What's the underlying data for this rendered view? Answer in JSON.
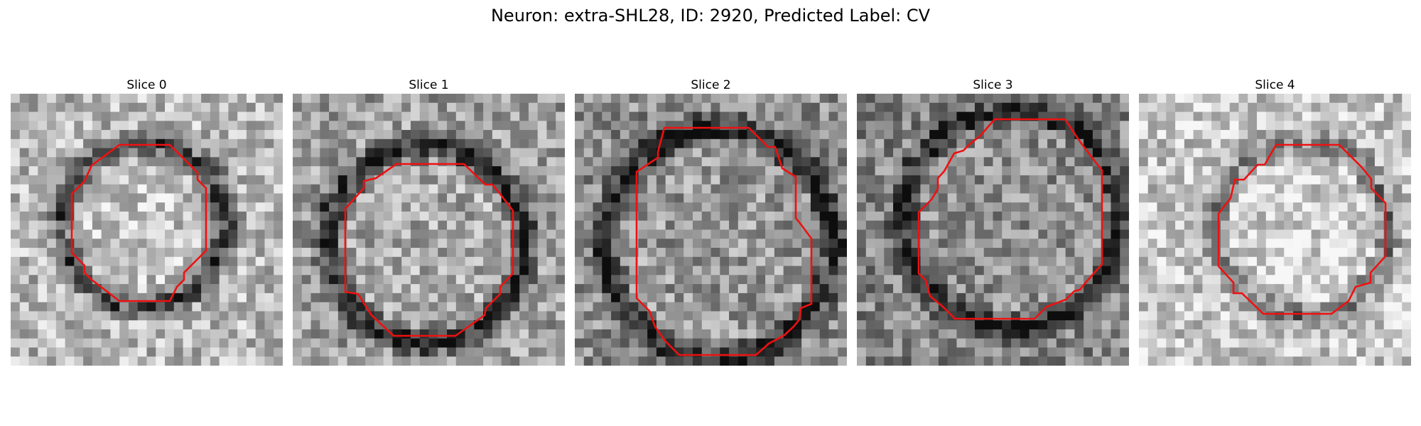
{
  "figure": {
    "title": "Neuron: extra-SHL28, ID: 2920, Predicted Label: CV",
    "contour_color": "#ee1111",
    "panels": [
      {
        "title": "Slice 0"
      },
      {
        "title": "Slice 1"
      },
      {
        "title": "Slice 2"
      },
      {
        "title": "Slice 3"
      },
      {
        "title": "Slice 4"
      }
    ]
  }
}
